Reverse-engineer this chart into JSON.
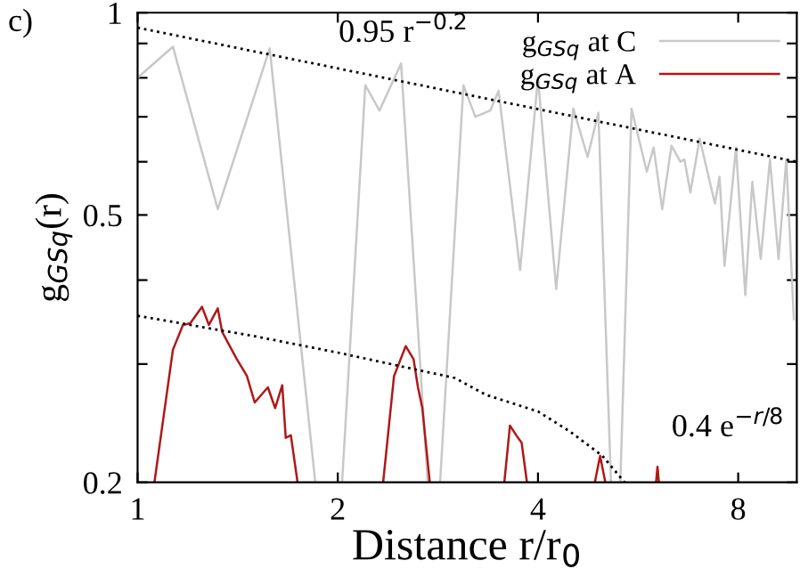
{
  "chart_data": {
    "type": "line",
    "xlabel": "Distance r/r$_{0}$",
    "ylabel": "g$_{GSq}$(r)",
    "log": "xy",
    "xlim": [
      1,
      9.8
    ],
    "xticks": [
      1,
      2,
      4,
      8
    ],
    "ylim": [
      0.2,
      1
    ],
    "yticks": [
      0.2,
      {
        "value": 0.3,
        "label": null
      },
      {
        "value": 0.4,
        "label": null
      },
      0.5,
      {
        "value": 0.6,
        "label": null
      },
      {
        "value": 0.7,
        "label": null
      },
      {
        "value": 0.8,
        "label": null
      },
      {
        "value": 0.9,
        "label": null
      },
      1
    ],
    "legend": "top right",
    "grid": false,
    "annotations": [
      "c)",
      "0.95 r$^{−0.2}$",
      "0.4 e$^{−r/8}$"
    ],
    "series": [
      {
        "name": "g$_{GSq}$ at C",
        "color": "#c8c8c8",
        "line_style": "solid",
        "x": [
          1,
          1.13,
          1.32,
          1.58,
          1.85,
          1.9,
          2.03,
          2.2,
          2.31,
          2.49,
          2.73,
          2.8,
          2.85,
          3.09,
          3.22,
          3.39,
          3.49,
          3.76,
          4.0,
          4.26,
          4.52,
          4.75,
          4.93,
          5.15,
          5.2,
          5.32,
          5.53,
          5.83,
          5.97,
          6.15,
          6.35,
          6.55,
          6.64,
          6.78,
          7.0,
          7.38,
          7.5,
          7.63,
          7.94,
          8.2,
          8.4,
          8.65,
          8.93,
          9.2,
          9.45,
          9.7
        ],
        "values": [
          0.8,
          0.89,
          0.51,
          0.885,
          0.2,
          null,
          0.2,
          0.78,
          0.715,
          0.84,
          0.2,
          null,
          0.2,
          0.78,
          0.7,
          0.715,
          0.765,
          0.414,
          0.8,
          0.388,
          0.72,
          0.61,
          0.71,
          0.2,
          null,
          0.2,
          0.72,
          0.58,
          0.63,
          0.51,
          0.634,
          0.6,
          0.605,
          0.54,
          0.65,
          0.52,
          0.57,
          0.42,
          0.63,
          0.38,
          0.56,
          0.43,
          0.605,
          0.43,
          0.605,
          0.35
        ]
      },
      {
        "name": "g$_{GSq}$ at A",
        "color": "#b01818",
        "line_style": "solid",
        "x": [
          1.06,
          1.13,
          1.17,
          1.2,
          1.25,
          1.28,
          1.32,
          1.34,
          1.41,
          1.46,
          1.5,
          1.57,
          1.61,
          1.65,
          1.67,
          1.7,
          1.74,
          2.0,
          2.34,
          2.43,
          2.47,
          2.53,
          2.6,
          2.64,
          2.68,
          2.75,
          3.0,
          3.56,
          3.63,
          3.71,
          3.78,
          3.85,
          4.5,
          4.87,
          4.96,
          5.05,
          5.5,
          6.02,
          6.05,
          6.08
        ],
        "values": [
          0.2,
          0.315,
          0.343,
          0.345,
          0.365,
          0.343,
          0.363,
          0.335,
          0.305,
          0.288,
          0.263,
          0.277,
          0.258,
          0.279,
          0.233,
          0.235,
          0.2,
          null,
          0.2,
          0.288,
          0.3,
          0.319,
          0.305,
          0.277,
          0.258,
          0.2,
          null,
          0.2,
          0.243,
          0.235,
          0.229,
          0.2,
          null,
          0.2,
          0.219,
          0.2,
          null,
          0.2,
          0.211,
          0.2
        ]
      },
      {
        "color": "#000000",
        "line_style": "dotted",
        "x": [
          1,
          9.8
        ],
        "values": [
          0.95,
          0.6
        ]
      },
      {
        "color": "#000000",
        "line_style": "dotted",
        "x": [
          1,
          1.5,
          2,
          3,
          3.34,
          4,
          4.47,
          5,
          5.4
        ],
        "values": [
          0.354,
          0.33,
          0.312,
          0.286,
          0.27,
          0.255,
          0.238,
          0.219,
          0.2
        ]
      }
    ]
  }
}
